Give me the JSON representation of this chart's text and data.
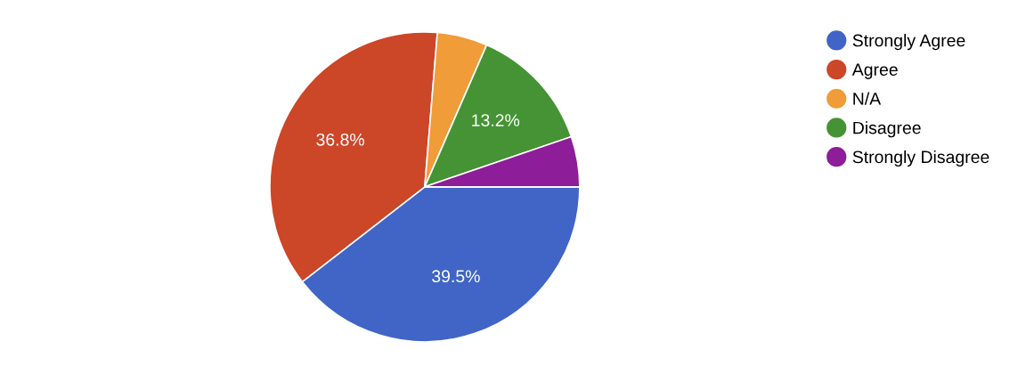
{
  "chart_data": {
    "type": "pie",
    "categories": [
      "Strongly Agree",
      "Agree",
      "N/A",
      "Disagree",
      "Strongly Disagree"
    ],
    "values": [
      39.5,
      36.8,
      5.25,
      13.2,
      5.25
    ],
    "colors": [
      "#4065c6",
      "#cc4628",
      "#f09c38",
      "#459334",
      "#8d1d98"
    ],
    "value_labels": [
      "39.5%",
      "36.8%",
      null,
      "13.2%",
      null
    ],
    "legend": "right"
  }
}
